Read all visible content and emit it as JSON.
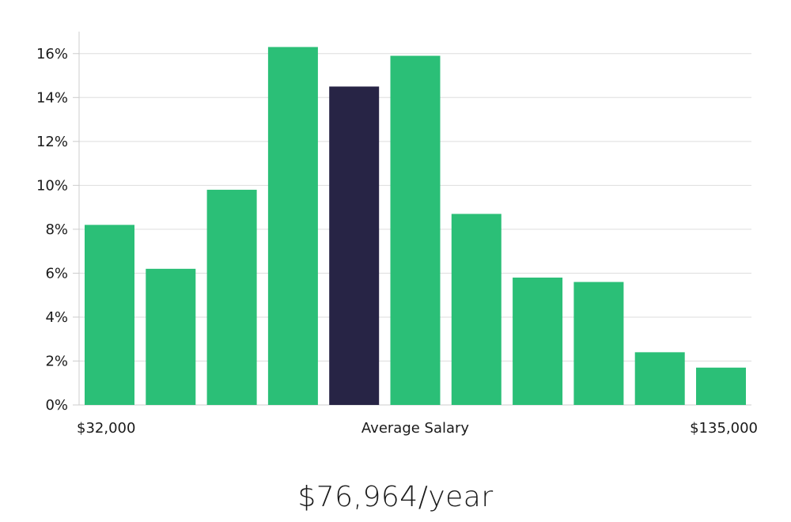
{
  "chart_data": {
    "type": "bar",
    "title": "",
    "ylabel": "",
    "xlabel": "Average Salary",
    "x_start_label": "$32,000",
    "x_end_label": "$135,000",
    "ylim": [
      0,
      17
    ],
    "y_ticks": [
      0,
      2,
      4,
      6,
      8,
      10,
      12,
      14,
      16
    ],
    "y_tick_format": "percent",
    "grid": true,
    "values": [
      8.2,
      6.2,
      9.8,
      16.3,
      14.5,
      15.9,
      8.7,
      5.8,
      5.6,
      2.4,
      1.7
    ],
    "highlight_index": 4,
    "colors": {
      "bar": "#2bbf77",
      "highlight": "#272445"
    }
  },
  "summary": {
    "salary_text": "$76,964/year"
  }
}
